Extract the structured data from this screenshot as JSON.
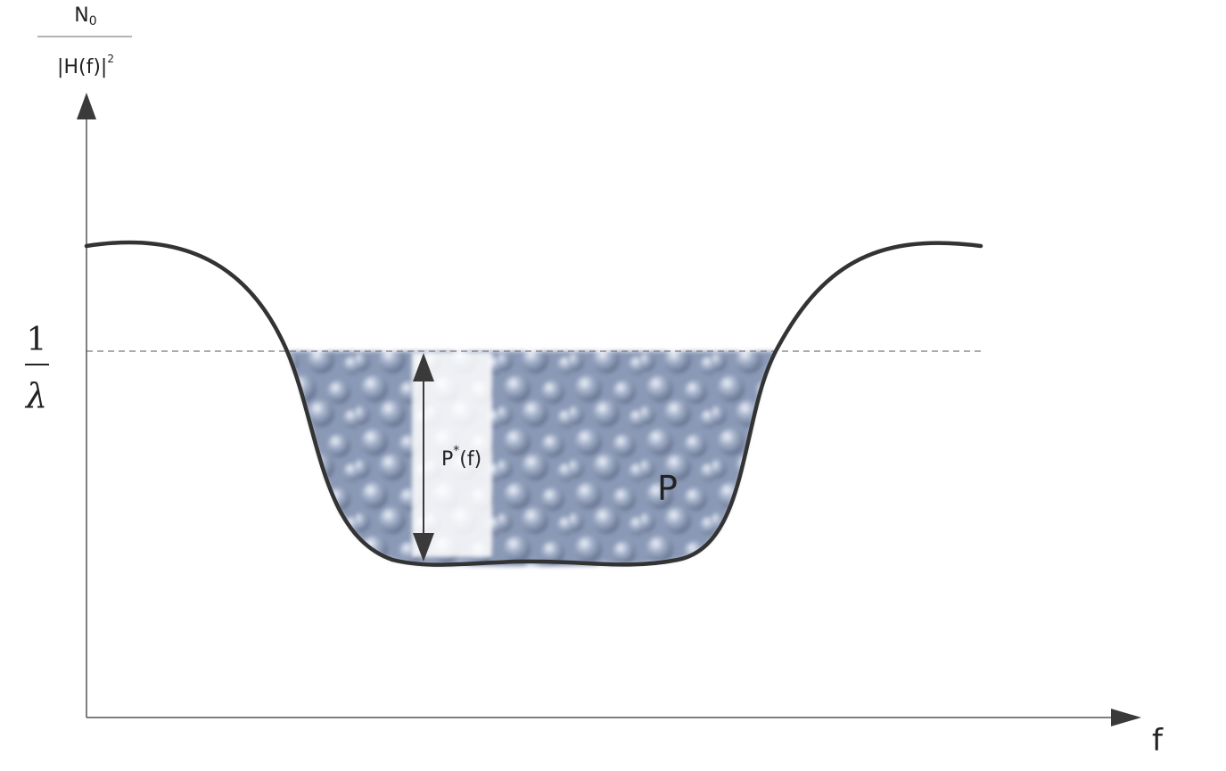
{
  "y_axis": {
    "numerator": "N",
    "numerator_sub": "0",
    "denominator": "|H(f)|",
    "denominator_sup": "2"
  },
  "x_axis": {
    "label": "f"
  },
  "level": {
    "numerator": "1",
    "symbol": "λ"
  },
  "arrow_label": {
    "text": "P",
    "sup": "*",
    "arg": "(f)"
  },
  "region_label": "P",
  "colors": {
    "curve": "#333333",
    "axis": "#555555",
    "water": "#8796b4",
    "water_highlight": "#dfe6f2",
    "arrow": "#3a3a3a"
  }
}
